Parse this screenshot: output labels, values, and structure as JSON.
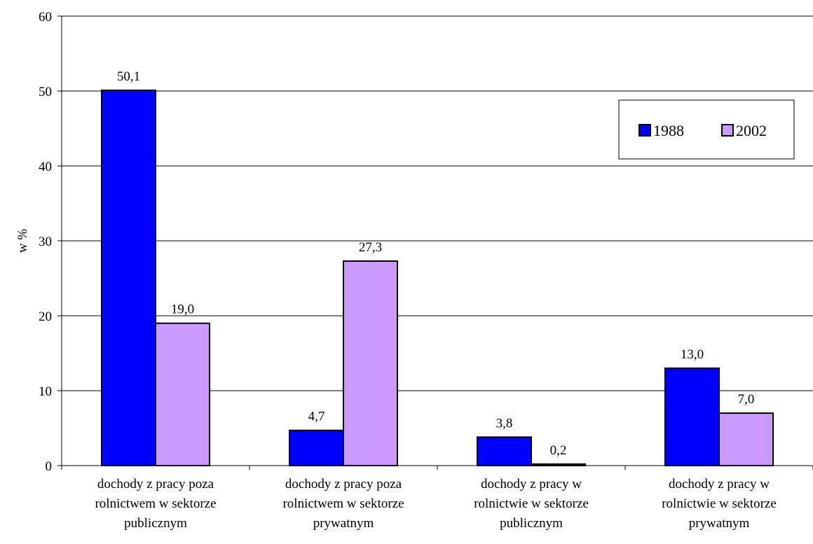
{
  "chart_data": {
    "type": "bar",
    "title": "",
    "xlabel": "",
    "ylabel": "w %",
    "ylim": [
      0,
      60
    ],
    "yticks": [
      0,
      10,
      20,
      30,
      40,
      50,
      60
    ],
    "grid": true,
    "legend_position": "top-right",
    "categories": [
      [
        "dochody z pracy poza",
        "rolnictwem w sektorze",
        "publicznym"
      ],
      [
        "dochody z pracy poza",
        "rolnictwem w sektorze",
        "prywatnym"
      ],
      [
        "dochody z pracy w",
        "rolnictwie w sektorze",
        "publicznym"
      ],
      [
        "dochody z pracy w",
        "rolnictwie w sektorze",
        "prywatnym"
      ]
    ],
    "series": [
      {
        "name": "1988",
        "color": "#0000ff",
        "values": [
          50.1,
          4.7,
          3.8,
          13.0
        ],
        "labels": [
          "50,1",
          "4,7",
          "3,8",
          "13,0"
        ]
      },
      {
        "name": "2002",
        "color": "#cc99ff",
        "values": [
          19.0,
          27.3,
          0.2,
          7.0
        ],
        "labels": [
          "19,0",
          "27,3",
          "0,2",
          "7,0"
        ]
      }
    ]
  }
}
